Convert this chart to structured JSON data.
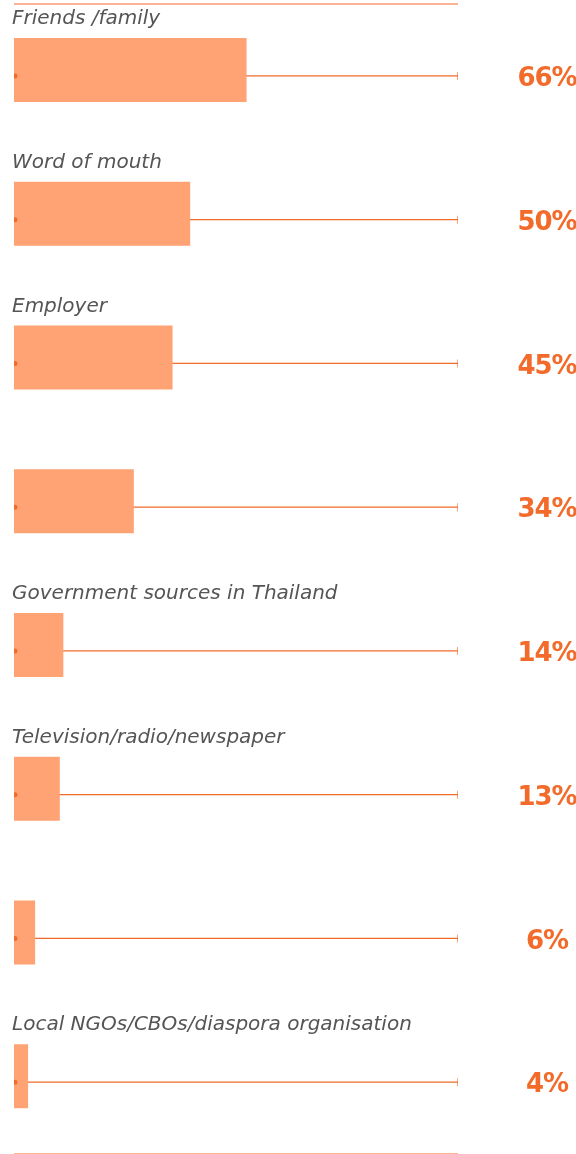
{
  "chart_data": {
    "type": "bar",
    "orientation": "horizontal",
    "categories": [
      "Friends /family",
      "Word of mouth",
      "Employer",
      null,
      "Government sources in Thailand",
      "Television/radio/newspaper",
      null,
      "Local NGOs/CBOs/diaspora organisation"
    ],
    "values": [
      66,
      50,
      45,
      34,
      14,
      13,
      6,
      4
    ],
    "value_labels": [
      "66%",
      "50%",
      "45%",
      "34%",
      "14%",
      "13%",
      "6%",
      "4%"
    ],
    "color": "#ffa375",
    "xlim": [
      0,
      126
    ],
    "grid": "y",
    "legend": false
  }
}
